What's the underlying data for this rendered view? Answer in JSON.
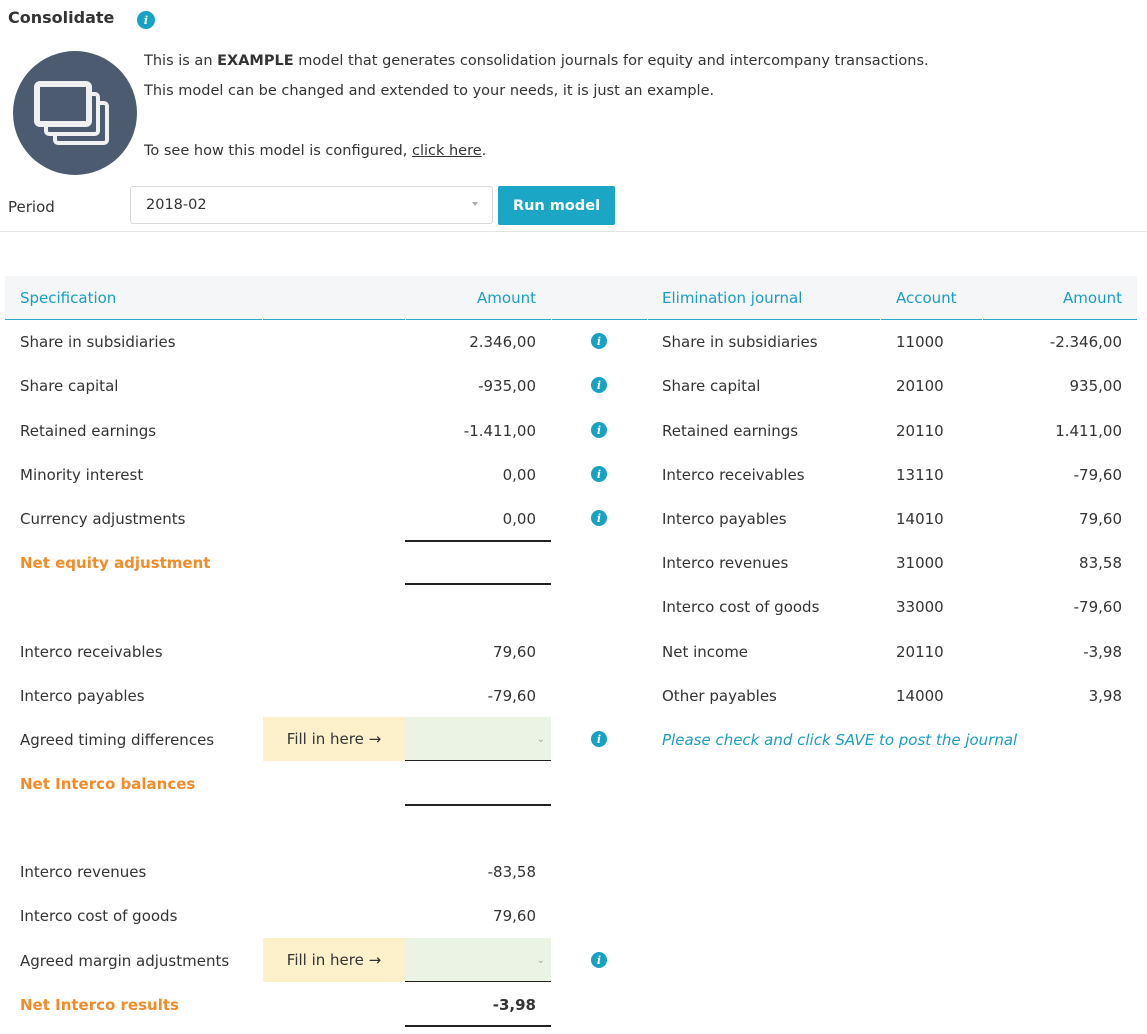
{
  "header": {
    "title": "Consolidate",
    "info_icon": "info-icon"
  },
  "intro": {
    "line1_pre": "This is an ",
    "line1_bold": "EXAMPLE",
    "line1_post": " model that generates consolidation journals for equity and intercompany transactions.",
    "line2": "This model can be changed and extended to your needs, it is just an example.",
    "line3_pre": "To see how this model is configured, ",
    "line3_link": "click here",
    "line3_post": ".",
    "logo_icon": "stacked-windows-icon"
  },
  "period": {
    "label": "Period",
    "value": "2018-02",
    "run_label": "Run model"
  },
  "spec_table": {
    "col_specification": "Specification",
    "col_amount": "Amount",
    "equity_rows": [
      {
        "label": "Share in subsidiaries",
        "amount": "2.346,00"
      },
      {
        "label": "Share capital",
        "amount": "-935,00"
      },
      {
        "label": "Retained earnings",
        "amount": "-1.411,00"
      },
      {
        "label": "Minority interest",
        "amount": "0,00"
      },
      {
        "label": "Currency adjustments",
        "amount": "0,00"
      }
    ],
    "net_equity_label": "Net equity adjustment",
    "interco_rows": [
      {
        "label": "Interco receivables",
        "amount": "79,60"
      },
      {
        "label": "Interco payables",
        "amount": "-79,60"
      }
    ],
    "timing_label": "Agreed timing differences",
    "fill_label": "Fill in here →",
    "net_interco_balances_label": "Net Interco balances",
    "result_rows": [
      {
        "label": "Interco revenues",
        "amount": "-83,58"
      },
      {
        "label": "Interco cost of goods",
        "amount": "79,60"
      }
    ],
    "margin_label": "Agreed margin adjustments",
    "net_interco_results_label": "Net Interco results",
    "net_interco_results_amount": "-3,98"
  },
  "journal_table": {
    "col_elimination": "Elimination journal",
    "col_account": "Account",
    "col_amount": "Amount",
    "rows": [
      {
        "label": "Share in subsidiaries",
        "account": "11000",
        "amount": "-2.346,00"
      },
      {
        "label": "Share capital",
        "account": "20100",
        "amount": "935,00"
      },
      {
        "label": "Retained earnings",
        "account": "20110",
        "amount": "1.411,00"
      },
      {
        "label": "Interco receivables",
        "account": "13110",
        "amount": "-79,60"
      },
      {
        "label": "Interco payables",
        "account": "14010",
        "amount": "79,60"
      },
      {
        "label": "Interco revenues",
        "account": "31000",
        "amount": "83,58"
      },
      {
        "label": "Interco cost of goods",
        "account": "33000",
        "amount": "-79,60"
      },
      {
        "label": "Net income",
        "account": "20110",
        "amount": "-3,98"
      },
      {
        "label": "Other payables",
        "account": "14000",
        "amount": "3,98"
      }
    ],
    "note": "Please check and click SAVE to post the journal"
  },
  "colors": {
    "accent": "#1ba6c6",
    "orange": "#f28c28",
    "fill_bg": "#fdf1cc",
    "input_bg": "#eaf3e4"
  }
}
